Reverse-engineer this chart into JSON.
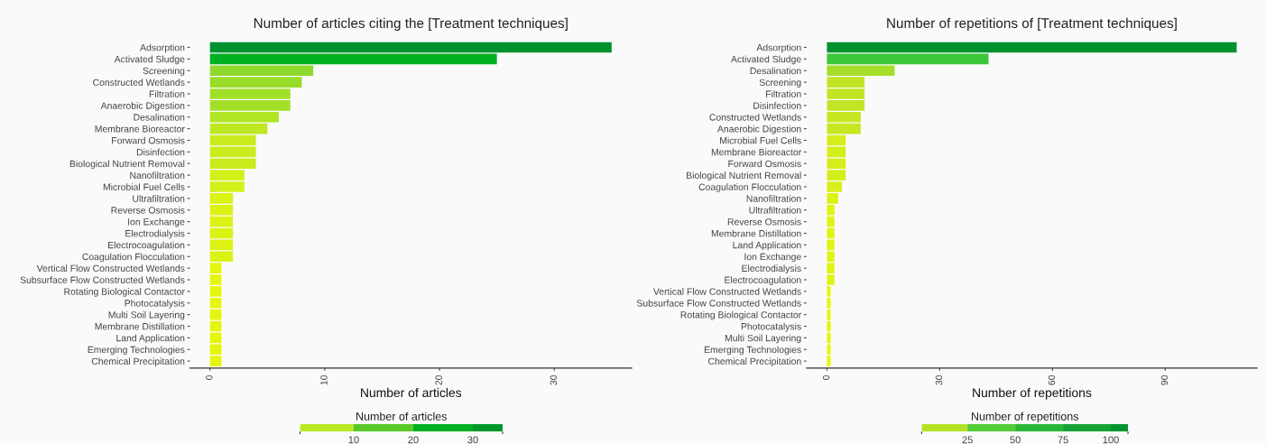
{
  "chart_data": [
    {
      "type": "bar",
      "orientation": "horizontal",
      "title": "Number of articles citing the [Treatment techniques]",
      "xlabel": "Number of articles",
      "clabel": "Number of articles",
      "categories": [
        "Adsorption",
        "Activated Sludge",
        "Screening",
        "Constructed Wetlands",
        "Filtration",
        "Anaerobic Digestion",
        "Desalination",
        "Membrane Bioreactor",
        "Forward Osmosis",
        "Disinfection",
        "Biological Nutrient Removal",
        "Nanofiltration",
        "Microbial Fuel Cells",
        "Ultrafiltration",
        "Reverse Osmosis",
        "Ion Exchange",
        "Electrodialysis",
        "Electrocoagulation",
        "Coagulation Flocculation",
        "Vertical Flow Constructed Wetlands",
        "Subsurface Flow Constructed Wetlands",
        "Rotating Biological Contactor",
        "Photocatalysis",
        "Multi Soil Layering",
        "Membrane Distillation",
        "Land Application",
        "Emerging Technologies",
        "Chemical Precipitation"
      ],
      "values": [
        35,
        25,
        9,
        8,
        7,
        7,
        6,
        5,
        4,
        4,
        4,
        3,
        3,
        2,
        2,
        2,
        2,
        2,
        2,
        1,
        1,
        1,
        1,
        1,
        1,
        1,
        1,
        1
      ],
      "colors": [
        "#00912f",
        "#00b021",
        "#8fd92c",
        "#98dc2a",
        "#a2e028",
        "#a2e028",
        "#b0e525",
        "#bde822",
        "#c9ec1e",
        "#c9ec1e",
        "#c9ec1e",
        "#d4f01a",
        "#d4f01a",
        "#dcf215",
        "#dcf215",
        "#dcf215",
        "#dcf215",
        "#dcf215",
        "#dcf215",
        "#e4f60e",
        "#e4f60e",
        "#e4f60e",
        "#e4f60e",
        "#e4f60e",
        "#e4f60e",
        "#e4f60e",
        "#e4f60e",
        "#e4f60e"
      ],
      "xlim": [
        -1.75,
        36.75
      ],
      "xticks": [
        0,
        10,
        20,
        30
      ],
      "clim": [
        1,
        35
      ],
      "cticks": [
        10,
        20,
        30
      ]
    },
    {
      "type": "bar",
      "orientation": "horizontal",
      "title": "Number of repetitions of [Treatment techniques]",
      "xlabel": "Number of repetitions",
      "clabel": "Number of repetitions",
      "categories": [
        "Adsorption",
        "Activated Sludge",
        "Desalination",
        "Screening",
        "Filtration",
        "Disinfection",
        "Constructed Wetlands",
        "Anaerobic Digestion",
        "Microbial Fuel Cells",
        "Membrane Bioreactor",
        "Forward Osmosis",
        "Biological Nutrient Removal",
        "Coagulation Flocculation",
        "Nanofiltration",
        "Ultrafiltration",
        "Reverse Osmosis",
        "Membrane Distillation",
        "Land Application",
        "Ion Exchange",
        "Electrodialysis",
        "Electrocoagulation",
        "Vertical Flow Constructed Wetlands",
        "Subsurface Flow Constructed Wetlands",
        "Rotating Biological Contactor",
        "Photocatalysis",
        "Multi Soil Layering",
        "Emerging Technologies",
        "Chemical Precipitation"
      ],
      "values": [
        109,
        43,
        18,
        10,
        10,
        10,
        9,
        9,
        5,
        5,
        5,
        5,
        4,
        3,
        2,
        2,
        2,
        2,
        2,
        2,
        2,
        1,
        1,
        1,
        1,
        1,
        1,
        1
      ],
      "colors": [
        "#00912f",
        "#3cc73a",
        "#a5de2a",
        "#c0e524",
        "#c0e524",
        "#c0e524",
        "#c6e822",
        "#c6e822",
        "#d4ee1a",
        "#d4ee1a",
        "#d4ee1a",
        "#d4ee1a",
        "#d8ef18",
        "#dcf115",
        "#e0f312",
        "#e0f312",
        "#e0f312",
        "#e0f312",
        "#e0f312",
        "#e0f312",
        "#e0f312",
        "#e6f60c",
        "#e6f60c",
        "#e6f60c",
        "#e6f60c",
        "#e6f60c",
        "#e6f60c",
        "#e6f60c"
      ],
      "xlim": [
        -5.45,
        114.45
      ],
      "xticks": [
        0,
        30,
        60,
        90
      ],
      "clim": [
        1,
        109
      ],
      "cticks": [
        25,
        50,
        75,
        100
      ]
    }
  ]
}
